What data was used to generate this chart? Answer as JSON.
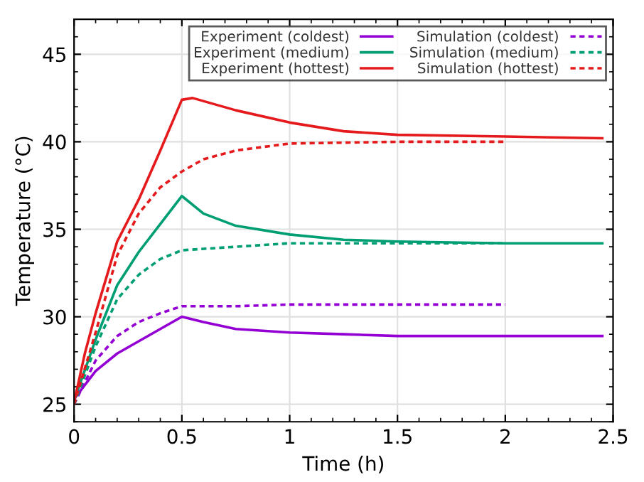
{
  "chart_data": {
    "type": "line",
    "xlabel": "Time (h)",
    "ylabel": "Temperature (°C)",
    "xlim": [
      0,
      2.5
    ],
    "xticks": [
      0,
      0.5,
      1,
      1.5,
      2,
      2.5
    ],
    "ylim": [
      24,
      47
    ],
    "yticks": [
      25,
      30,
      35,
      40,
      45
    ],
    "grid": true,
    "legend": "top right",
    "marker": "none",
    "series": [
      {
        "name": "Experiment (coldest)",
        "color": "#9400d3",
        "line_style": "solid",
        "x": [
          0,
          0.1,
          0.2,
          0.3,
          0.4,
          0.5,
          0.6,
          0.75,
          1,
          1.25,
          1.5,
          2,
          2.45
        ],
        "values": [
          25.3,
          26.9,
          27.9,
          28.6,
          29.3,
          30.0,
          29.7,
          29.3,
          29.1,
          29.0,
          28.9,
          28.9,
          28.9
        ]
      },
      {
        "name": "Experiment (medium)",
        "color": "#009e73",
        "line_style": "solid",
        "x": [
          0,
          0.1,
          0.2,
          0.3,
          0.4,
          0.5,
          0.6,
          0.75,
          1,
          1.25,
          1.5,
          2,
          2.45
        ],
        "values": [
          25.2,
          28.7,
          31.8,
          33.7,
          35.3,
          36.9,
          35.9,
          35.2,
          34.7,
          34.4,
          34.3,
          34.2,
          34.2
        ]
      },
      {
        "name": "Experiment (hottest)",
        "color": "#e41a1c",
        "line_style": "solid",
        "x": [
          0,
          0.05,
          0.1,
          0.2,
          0.3,
          0.4,
          0.5,
          0.55,
          0.75,
          1,
          1.25,
          1.5,
          2,
          2.45
        ],
        "values": [
          25.1,
          27.9,
          30.2,
          34.3,
          36.7,
          39.5,
          42.4,
          42.5,
          41.8,
          41.1,
          40.6,
          40.4,
          40.3,
          40.2
        ]
      },
      {
        "name": "Simulation (coldest)",
        "color": "#9400d3",
        "line_style": "dashed",
        "x": [
          0,
          0.1,
          0.2,
          0.3,
          0.4,
          0.5,
          0.75,
          1,
          1.5,
          2
        ],
        "values": [
          25.0,
          27.5,
          28.9,
          29.7,
          30.2,
          30.6,
          30.6,
          30.7,
          30.7,
          30.7
        ]
      },
      {
        "name": "Simulation (medium)",
        "color": "#009e73",
        "line_style": "dashed",
        "x": [
          0,
          0.1,
          0.2,
          0.3,
          0.4,
          0.5,
          0.75,
          1,
          1.5,
          2
        ],
        "values": [
          25.0,
          28.3,
          31.0,
          32.4,
          33.3,
          33.8,
          34.0,
          34.2,
          34.2,
          34.2
        ]
      },
      {
        "name": "Simulation (hottest)",
        "color": "#e41a1c",
        "line_style": "dashed",
        "x": [
          0,
          0.1,
          0.2,
          0.3,
          0.4,
          0.5,
          0.6,
          0.75,
          1,
          1.5,
          2
        ],
        "values": [
          25.0,
          29.1,
          33.5,
          35.9,
          37.4,
          38.3,
          39.0,
          39.5,
          39.9,
          40.0,
          40.0
        ]
      }
    ]
  }
}
